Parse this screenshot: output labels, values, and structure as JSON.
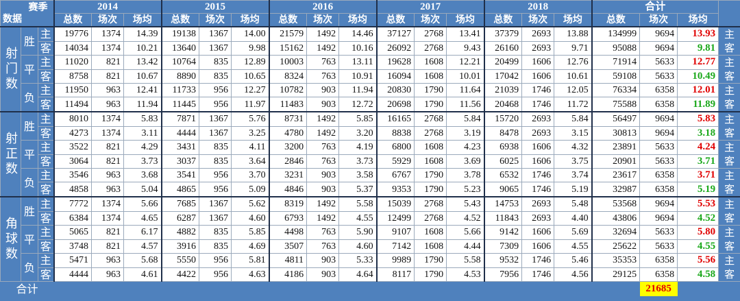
{
  "header": {
    "corner_top": "赛季",
    "corner_bottom": "数据",
    "seasons": [
      "2014",
      "2015",
      "2016",
      "2017",
      "2018",
      "合计"
    ],
    "columns": [
      "总数",
      "场次",
      "场均"
    ]
  },
  "groups": [
    {
      "label": "射门数",
      "results": [
        {
          "label": "胜",
          "rows": [
            {
              "side": "主",
              "cells": [
                "19776",
                "1374",
                "14.39",
                "19138",
                "1367",
                "14.00",
                "21579",
                "1492",
                "14.46",
                "37127",
                "2768",
                "13.41",
                "37379",
                "2693",
                "13.88",
                "134999",
                "9694",
                "13.93"
              ]
            },
            {
              "side": "客",
              "cells": [
                "14034",
                "1374",
                "10.21",
                "13640",
                "1367",
                "9.98",
                "15162",
                "1492",
                "10.16",
                "26092",
                "2768",
                "9.43",
                "26160",
                "2693",
                "9.71",
                "95088",
                "9694",
                "9.81"
              ]
            }
          ]
        },
        {
          "label": "平",
          "rows": [
            {
              "side": "主",
              "cells": [
                "11020",
                "821",
                "13.42",
                "10764",
                "835",
                "12.89",
                "10003",
                "763",
                "13.11",
                "19628",
                "1608",
                "12.21",
                "20499",
                "1606",
                "12.76",
                "71914",
                "5633",
                "12.77"
              ]
            },
            {
              "side": "客",
              "cells": [
                "8758",
                "821",
                "10.67",
                "8890",
                "835",
                "10.65",
                "8324",
                "763",
                "10.91",
                "16094",
                "1608",
                "10.01",
                "17042",
                "1606",
                "10.61",
                "59108",
                "5633",
                "10.49"
              ]
            }
          ]
        },
        {
          "label": "负",
          "rows": [
            {
              "side": "主",
              "cells": [
                "11950",
                "963",
                "12.41",
                "11733",
                "956",
                "12.27",
                "10782",
                "903",
                "11.94",
                "20830",
                "1790",
                "11.64",
                "21039",
                "1746",
                "12.05",
                "76334",
                "6358",
                "12.01"
              ]
            },
            {
              "side": "客",
              "cells": [
                "11494",
                "963",
                "11.94",
                "11445",
                "956",
                "11.97",
                "11483",
                "903",
                "12.72",
                "20698",
                "1790",
                "11.56",
                "20468",
                "1746",
                "11.72",
                "75588",
                "6358",
                "11.89"
              ]
            }
          ]
        }
      ]
    },
    {
      "label": "射正数",
      "results": [
        {
          "label": "胜",
          "rows": [
            {
              "side": "主",
              "cells": [
                "8010",
                "1374",
                "5.83",
                "7871",
                "1367",
                "5.76",
                "8731",
                "1492",
                "5.85",
                "16165",
                "2768",
                "5.84",
                "15720",
                "2693",
                "5.84",
                "56497",
                "9694",
                "5.83"
              ]
            },
            {
              "side": "客",
              "cells": [
                "4273",
                "1374",
                "3.11",
                "4444",
                "1367",
                "3.25",
                "4780",
                "1492",
                "3.20",
                "8838",
                "2768",
                "3.19",
                "8478",
                "2693",
                "3.15",
                "30813",
                "9694",
                "3.18"
              ]
            }
          ]
        },
        {
          "label": "平",
          "rows": [
            {
              "side": "主",
              "cells": [
                "3522",
                "821",
                "4.29",
                "3431",
                "835",
                "4.11",
                "3200",
                "763",
                "4.19",
                "6800",
                "1608",
                "4.23",
                "6938",
                "1606",
                "4.32",
                "23891",
                "5633",
                "4.24"
              ]
            },
            {
              "side": "客",
              "cells": [
                "3064",
                "821",
                "3.73",
                "3037",
                "835",
                "3.64",
                "2846",
                "763",
                "3.73",
                "5929",
                "1608",
                "3.69",
                "6025",
                "1606",
                "3.75",
                "20901",
                "5633",
                "3.71"
              ]
            }
          ]
        },
        {
          "label": "负",
          "rows": [
            {
              "side": "主",
              "cells": [
                "3546",
                "963",
                "3.68",
                "3541",
                "956",
                "3.70",
                "3231",
                "903",
                "3.58",
                "6767",
                "1790",
                "3.78",
                "6532",
                "1746",
                "3.74",
                "23617",
                "6358",
                "3.71"
              ]
            },
            {
              "side": "客",
              "cells": [
                "4858",
                "963",
                "5.04",
                "4865",
                "956",
                "5.09",
                "4846",
                "903",
                "5.37",
                "9353",
                "1790",
                "5.23",
                "9065",
                "1746",
                "5.19",
                "32987",
                "6358",
                "5.19"
              ]
            }
          ]
        }
      ]
    },
    {
      "label": "角球数",
      "results": [
        {
          "label": "胜",
          "rows": [
            {
              "side": "主",
              "cells": [
                "7772",
                "1374",
                "5.66",
                "7685",
                "1367",
                "5.62",
                "8319",
                "1492",
                "5.58",
                "15039",
                "2768",
                "5.43",
                "14753",
                "2693",
                "5.48",
                "53568",
                "9694",
                "5.53"
              ]
            },
            {
              "side": "客",
              "cells": [
                "6384",
                "1374",
                "4.65",
                "6287",
                "1367",
                "4.60",
                "6793",
                "1492",
                "4.55",
                "12499",
                "2768",
                "4.52",
                "11843",
                "2693",
                "4.40",
                "43806",
                "9694",
                "4.52"
              ]
            }
          ]
        },
        {
          "label": "平",
          "rows": [
            {
              "side": "主",
              "cells": [
                "5065",
                "821",
                "6.17",
                "4882",
                "835",
                "5.85",
                "4498",
                "763",
                "5.90",
                "9107",
                "1608",
                "5.66",
                "9142",
                "1606",
                "5.69",
                "32694",
                "5633",
                "5.80"
              ]
            },
            {
              "side": "客",
              "cells": [
                "3748",
                "821",
                "4.57",
                "3916",
                "835",
                "4.69",
                "3507",
                "763",
                "4.60",
                "7142",
                "1608",
                "4.44",
                "7309",
                "1606",
                "4.55",
                "25622",
                "5633",
                "4.55"
              ]
            }
          ]
        },
        {
          "label": "负",
          "rows": [
            {
              "side": "主",
              "cells": [
                "5471",
                "963",
                "5.68",
                "5550",
                "956",
                "5.81",
                "4811",
                "903",
                "5.33",
                "9989",
                "1790",
                "5.58",
                "9532",
                "1746",
                "5.46",
                "35353",
                "6358",
                "5.56"
              ]
            },
            {
              "side": "客",
              "cells": [
                "4444",
                "963",
                "4.61",
                "4422",
                "956",
                "4.63",
                "4186",
                "903",
                "4.64",
                "8117",
                "1790",
                "4.53",
                "7956",
                "1746",
                "4.56",
                "29125",
                "6358",
                "4.58"
              ]
            }
          ]
        }
      ]
    }
  ],
  "footer": {
    "label": "合计",
    "value": "21685"
  }
}
